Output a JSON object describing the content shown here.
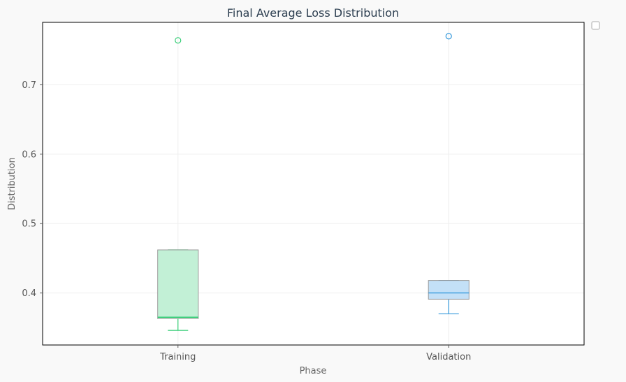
{
  "chart_data": {
    "type": "box",
    "title": "Final Average Loss Distribution",
    "xlabel": "Phase",
    "ylabel": "Distribution",
    "categories": [
      "Training",
      "Validation"
    ],
    "ylim": [
      0.325,
      0.79
    ],
    "yticks": [
      0.4,
      0.5,
      0.6,
      0.7
    ],
    "ytick_labels": [
      "0.4",
      "0.5",
      "0.6",
      "0.7"
    ],
    "grid": true,
    "legend": "top-right (empty)",
    "boxes": [
      {
        "category": "Training",
        "whisker_low": 0.346,
        "q1": 0.363,
        "median": 0.365,
        "q3": 0.462,
        "whisker_high": 0.462,
        "outliers": [
          0.764
        ],
        "fill_color": "#c2f0d6",
        "line_color": "#2ecc71",
        "box_edge_color": "#999999"
      },
      {
        "category": "Validation",
        "whisker_low": 0.37,
        "q1": 0.391,
        "median": 0.4,
        "q3": 0.418,
        "whisker_high": 0.418,
        "outliers": [
          0.77
        ],
        "fill_color": "#c3e0f7",
        "line_color": "#3498db",
        "box_edge_color": "#999999"
      }
    ]
  }
}
